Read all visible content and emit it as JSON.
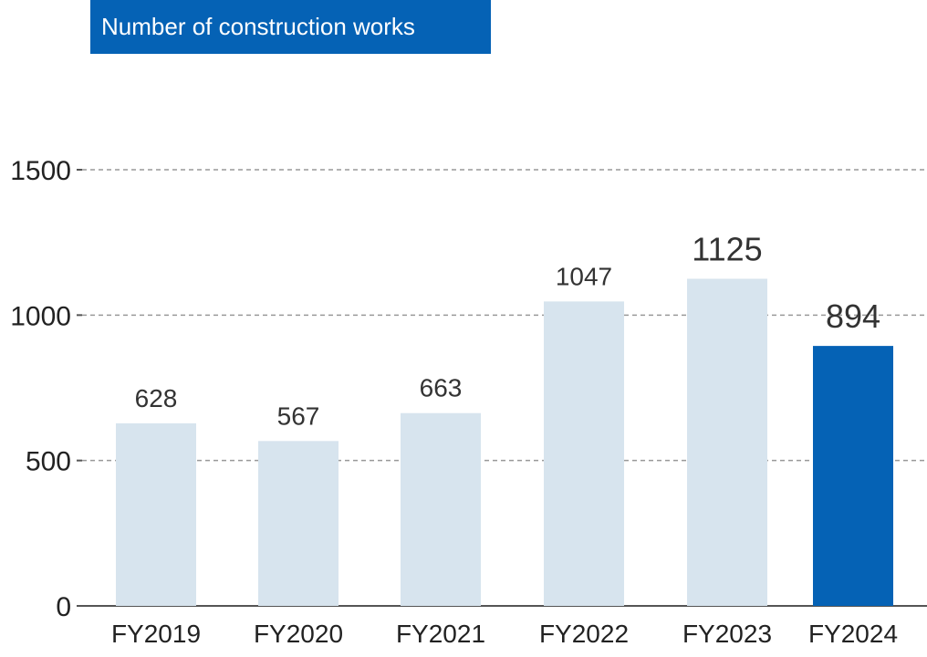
{
  "header": {
    "title": "Number of construction works"
  },
  "chart_data": {
    "type": "bar",
    "title": "Number of construction works",
    "xlabel": "",
    "ylabel": "",
    "categories": [
      "FY2019",
      "FY2020",
      "FY2021",
      "FY2022",
      "FY2023",
      "FY2024"
    ],
    "values": [
      628,
      567,
      663,
      1047,
      1125,
      894
    ],
    "ylim": [
      0,
      1500
    ],
    "yticks": [
      0,
      500,
      1000,
      1500
    ],
    "grid": true,
    "legend": "none",
    "colors": {
      "default_bar": "#d7e4ee",
      "highlight_bar": "#0562b5",
      "highlight_label": "#0562b5",
      "label": "#333333",
      "grid": "#999999",
      "title_background": "#0562b5"
    },
    "highlight_index": 5
  }
}
